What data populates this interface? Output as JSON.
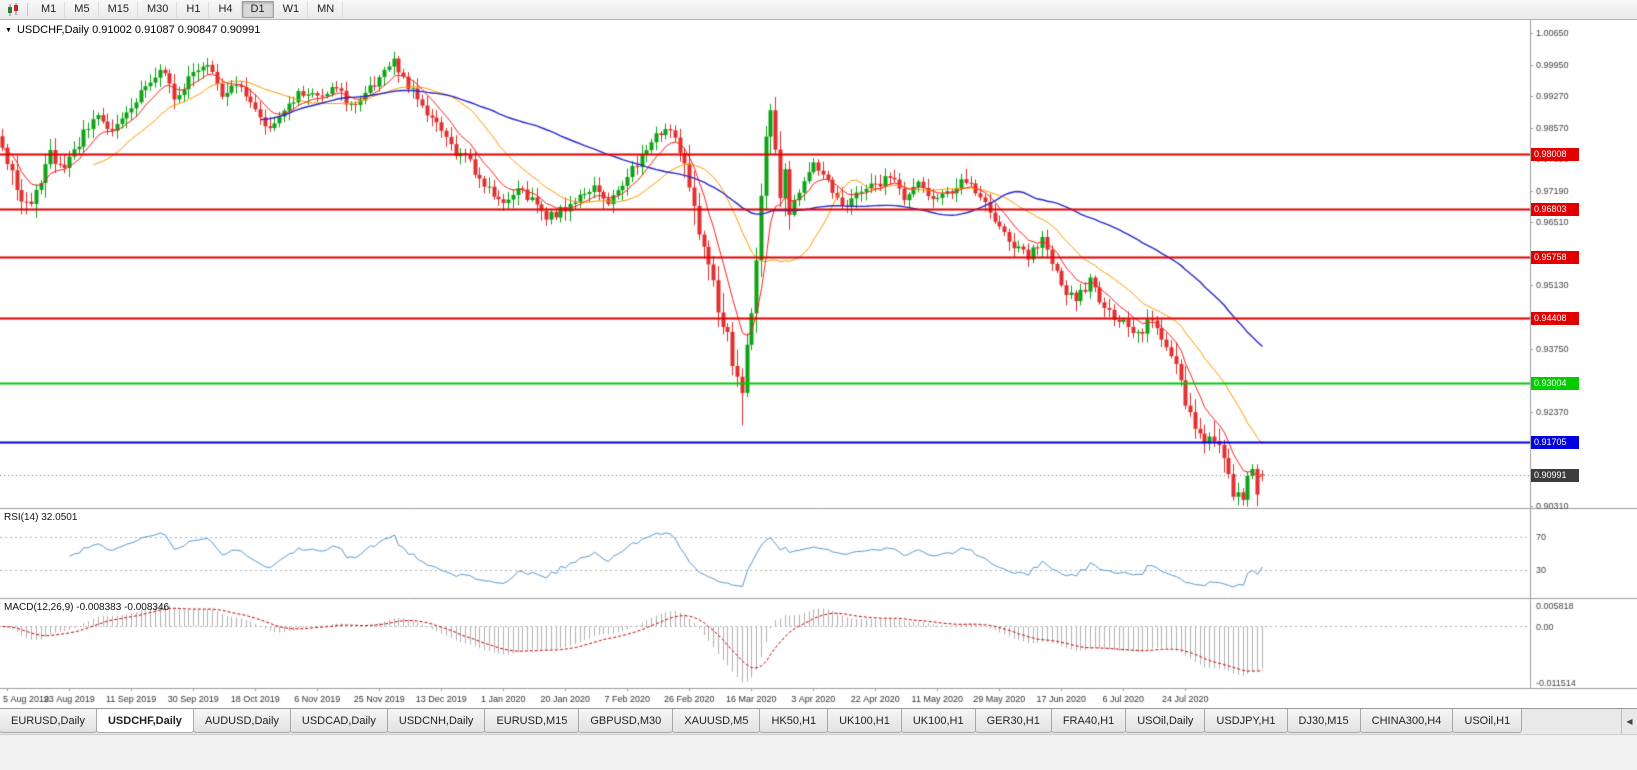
{
  "toolbar": {
    "timeframes": [
      {
        "label": "M1",
        "active": false
      },
      {
        "label": "M5",
        "active": false
      },
      {
        "label": "M15",
        "active": false
      },
      {
        "label": "M30",
        "active": false
      },
      {
        "label": "H1",
        "active": false
      },
      {
        "label": "H4",
        "active": false
      },
      {
        "label": "D1",
        "active": true
      },
      {
        "label": "W1",
        "active": false
      },
      {
        "label": "MN",
        "active": false
      }
    ],
    "active_timeframe": "D1"
  },
  "chart_data": {
    "type": "candlestick",
    "symbol": "USDCHF",
    "timeframe": "Daily",
    "title": "USDCHF,Daily 0.91002 0.91087 0.90847 0.90991",
    "last_ohlc": {
      "open": 0.91002,
      "high": 0.91087,
      "low": 0.90847,
      "close": 0.90991
    },
    "y_axis": {
      "min": 0.9026,
      "max": 1.0094,
      "tick_labels": [
        "1.00650",
        "0.99950",
        "0.99270",
        "0.98570",
        "0.97890",
        "0.97190",
        "0.96510",
        "0.95810",
        "0.95130",
        "0.94430",
        "0.93750",
        "0.93050",
        "0.92370",
        "0.91670",
        "0.90310"
      ]
    },
    "x_axis": {
      "tick_labels": [
        "5 Aug 2019",
        "23 Aug 2019",
        "11 Sep 2019",
        "30 Sep 2019",
        "18 Oct 2019",
        "6 Nov 2019",
        "25 Nov 2019",
        "13 Dec 2019",
        "1 Jan 2020",
        "20 Jan 2020",
        "7 Feb 2020",
        "26 Feb 2020",
        "16 Mar 2020",
        "3 Apr 2020",
        "22 Apr 2020",
        "11 May 2020",
        "29 May 2020",
        "17 Jun 2020",
        "6 Jul 2020",
        "24 Jul 2020"
      ],
      "first_tick_bar": 1,
      "bars_per_tick": 13
    },
    "price_path": [
      [
        0,
        0.981
      ],
      [
        2,
        0.9755
      ],
      [
        4,
        0.97
      ],
      [
        6,
        0.9682
      ],
      [
        8,
        0.975
      ],
      [
        10,
        0.98
      ],
      [
        12,
        0.9768
      ],
      [
        14,
        0.979
      ],
      [
        17,
        0.9845
      ],
      [
        20,
        0.988
      ],
      [
        23,
        0.985
      ],
      [
        27,
        0.9905
      ],
      [
        30,
        0.995
      ],
      [
        33,
        0.9992
      ],
      [
        36,
        0.9925
      ],
      [
        40,
        0.998
      ],
      [
        43,
        1.0005
      ],
      [
        46,
        0.9935
      ],
      [
        49,
        0.9955
      ],
      [
        53,
        0.989
      ],
      [
        56,
        0.9862
      ],
      [
        59,
        0.9905
      ],
      [
        62,
        0.993
      ],
      [
        66,
        0.9932
      ],
      [
        70,
        0.9952
      ],
      [
        73,
        0.9902
      ],
      [
        76,
        0.9932
      ],
      [
        79,
        0.9962
      ],
      [
        82,
        1.0
      ],
      [
        85,
        0.995
      ],
      [
        88,
        0.9902
      ],
      [
        92,
        0.9852
      ],
      [
        95,
        0.9802
      ],
      [
        98,
        0.9782
      ],
      [
        101,
        0.9732
      ],
      [
        105,
        0.9692
      ],
      [
        108,
        0.9722
      ],
      [
        111,
        0.9702
      ],
      [
        114,
        0.9662
      ],
      [
        118,
        0.9682
      ],
      [
        121,
        0.9712
      ],
      [
        124,
        0.9732
      ],
      [
        127,
        0.9692
      ],
      [
        131,
        0.9752
      ],
      [
        134,
        0.9792
      ],
      [
        137,
        0.9842
      ],
      [
        140,
        0.9852
      ],
      [
        143,
        0.9792
      ],
      [
        145,
        0.9672
      ],
      [
        147,
        0.9592
      ],
      [
        149,
        0.9512
      ],
      [
        151,
        0.9432
      ],
      [
        153,
        0.9352
      ],
      [
        155,
        0.9282
      ],
      [
        156,
        0.9392
      ],
      [
        157,
        0.9452
      ],
      [
        158,
        0.9552
      ],
      [
        159,
        0.9702
      ],
      [
        160,
        0.9832
      ],
      [
        161,
        0.9882
      ],
      [
        162,
        0.9802
      ],
      [
        163,
        0.9702
      ],
      [
        164,
        0.9752
      ],
      [
        165,
        0.9682
      ],
      [
        167,
        0.9722
      ],
      [
        170,
        0.9782
      ],
      [
        173,
        0.9742
      ],
      [
        176,
        0.9682
      ],
      [
        179,
        0.9722
      ],
      [
        183,
        0.9732
      ],
      [
        186,
        0.9752
      ],
      [
        189,
        0.9702
      ],
      [
        192,
        0.9732
      ],
      [
        196,
        0.9702
      ],
      [
        199,
        0.9722
      ],
      [
        202,
        0.9742
      ],
      [
        205,
        0.9712
      ],
      [
        209,
        0.9642
      ],
      [
        212,
        0.9602
      ],
      [
        215,
        0.9572
      ],
      [
        218,
        0.9622
      ],
      [
        222,
        0.9512
      ],
      [
        225,
        0.9482
      ],
      [
        228,
        0.9522
      ],
      [
        231,
        0.9462
      ],
      [
        235,
        0.9432
      ],
      [
        238,
        0.9402
      ],
      [
        241,
        0.9442
      ],
      [
        244,
        0.9382
      ],
      [
        247,
        0.9302
      ],
      [
        248,
        0.9262
      ],
      [
        250,
        0.9202
      ],
      [
        252,
        0.9152
      ],
      [
        254,
        0.9182
      ],
      [
        256,
        0.9122
      ],
      [
        258,
        0.9062
      ],
      [
        260,
        0.9038
      ],
      [
        261,
        0.9082
      ],
      [
        262,
        0.9122
      ],
      [
        263,
        0.9062
      ],
      [
        264,
        0.90991
      ]
    ],
    "levels": [
      {
        "value": "0.98008",
        "price": 0.98008,
        "color": "#e00000",
        "kind": "resistance"
      },
      {
        "value": "0.96803",
        "price": 0.96803,
        "color": "#e00000",
        "kind": "resistance"
      },
      {
        "value": "0.95758",
        "price": 0.95758,
        "color": "#e00000",
        "kind": "resistance"
      },
      {
        "value": "0.94408",
        "price": 0.94408,
        "color": "#e00000",
        "kind": "resistance"
      },
      {
        "value": "0.93004",
        "price": 0.93004,
        "color": "#00cc00",
        "kind": "support"
      },
      {
        "value": "0.91705",
        "price": 0.91705,
        "color": "#0000e0",
        "kind": "support"
      }
    ],
    "current_price": {
      "value": "0.90991",
      "price": 0.90991,
      "color": "#3c3c3c"
    },
    "indicators": {
      "rsi": {
        "label": "RSI(14) 32.0501",
        "period": 14,
        "value": 32.0501,
        "guides": [
          70,
          30
        ],
        "line_color": "#569bd2"
      },
      "macd": {
        "label": "MACD(12,26,9) -0.008383 -0.008346",
        "fast": 12,
        "slow": 26,
        "signal_period": 9,
        "macd_value": -0.008383,
        "signal_value": -0.008346,
        "scale_labels": [
          "0.005818",
          "0.00",
          "-0.011514"
        ],
        "histogram_color": "#b2b2b2",
        "signal_color": "#cc0000"
      }
    },
    "colors": {
      "background": "#ffffff",
      "up": "#0fa318",
      "down": "#e03030",
      "ma_fast": "#ff2020",
      "ma_mid": "#ff9900",
      "ma_slow": "#2929c8"
    }
  },
  "tabs": [
    {
      "label": "EURUSD,Daily",
      "active": false
    },
    {
      "label": "USDCHF,Daily",
      "active": true
    },
    {
      "label": "AUDUSD,Daily",
      "active": false
    },
    {
      "label": "USDCAD,Daily",
      "active": false
    },
    {
      "label": "USDCNH,Daily",
      "active": false
    },
    {
      "label": "EURUSD,M15",
      "active": false
    },
    {
      "label": "GBPUSD,M30",
      "active": false
    },
    {
      "label": "XAUUSD,M5",
      "active": false
    },
    {
      "label": "HK50,H1",
      "active": false
    },
    {
      "label": "UK100,H1",
      "active": false
    },
    {
      "label": "UK100,H1",
      "active": false
    },
    {
      "label": "GER30,H1",
      "active": false
    },
    {
      "label": "FRA40,H1",
      "active": false
    },
    {
      "label": "USOil,Daily",
      "active": false
    },
    {
      "label": "USDJPY,H1",
      "active": false
    },
    {
      "label": "DJ30,M15",
      "active": false
    },
    {
      "label": "CHINA300,H4",
      "active": false
    },
    {
      "label": "USOil,H1",
      "active": false
    }
  ],
  "tabs_scroll": {
    "icon": "◀"
  }
}
